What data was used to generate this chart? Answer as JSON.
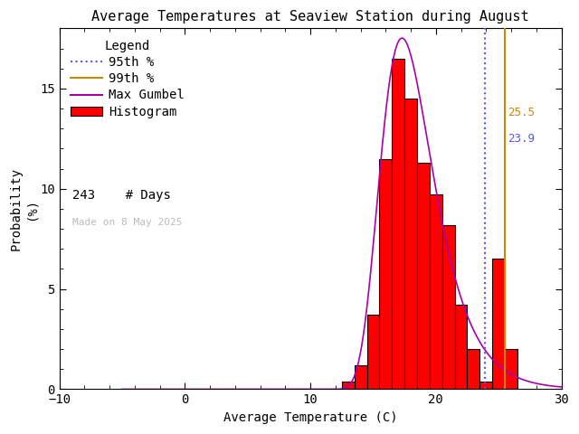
{
  "title": "Average Temperatures at Seaview Station during August",
  "xlabel": "Average Temperature (C)",
  "ylabel_line1": "Probability",
  "ylabel_line2": "(%)",
  "xlim": [
    -10,
    30
  ],
  "ylim": [
    0,
    18
  ],
  "background_color": "#ffffff",
  "hist_color": "#ff0000",
  "hist_edge_color": "#000000",
  "gumbel_color": "#aa00aa",
  "p95_color": "#5555ff",
  "p99_color": "#cc8800",
  "p95_value": 23.9,
  "p99_value": 25.5,
  "n_days": 243,
  "made_on": "Made on 8 May 2025",
  "bin_edges": [
    12.5,
    13.5,
    14.5,
    15.5,
    16.5,
    17.5,
    18.5,
    19.5,
    20.5,
    21.5,
    22.5,
    23.5,
    24.5,
    25.5,
    26.5
  ],
  "bin_probs": [
    0.4,
    1.2,
    3.7,
    11.5,
    16.5,
    14.5,
    11.3,
    9.7,
    8.2,
    4.2,
    2.0,
    0.4,
    6.5,
    2.0
  ],
  "gumbel_mu": 17.3,
  "gumbel_beta": 2.1,
  "title_fontsize": 11,
  "axis_fontsize": 10,
  "tick_fontsize": 10,
  "legend_fontsize": 10
}
